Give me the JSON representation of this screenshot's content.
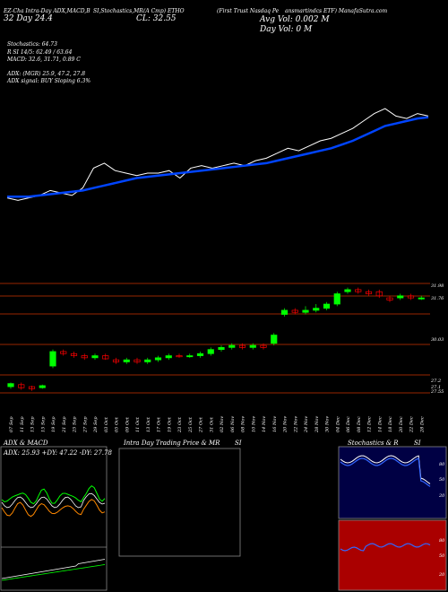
{
  "header": {
    "top_line_1": "EZ-Cha Intra-Day ADX,MACD,B",
    "top_line_2": "SI,Stochastics,MR",
    "top_line_3": "(A Cmp) ETHO",
    "top_line_4": "(First Trust Nasdaq Pe",
    "top_line_5": "ansmartindcs ETF) ManafaSutra.com",
    "ticker_tag": "CL: 32.55",
    "ticker_tag_2": "32 Day   24.4",
    "avg_vol": "Avg Vol: 0.002  M",
    "day_vol": "Day Vol: 0   M"
  },
  "indicators": {
    "stoch": "Stochastics: 64.73",
    "rsi": "R                         SI 14/5: 62.49 / 63.64",
    "macd": "MACD: 32.6,  31.71,  0.89 C",
    "adx": "ADX:                              (MGR) 25.9,  47.2,  27.8",
    "adx_signal": "ADX  signal:                              BUY Sloping 6.3%"
  },
  "price_labels": [
    "31.98",
    "31.76",
    "30.03",
    "27.2",
    "27.1",
    "27.55"
  ],
  "dates": [
    "07 Sep",
    "11 Sep",
    "13 Sep",
    "15 Sep",
    "19 Sep",
    "21 Sep",
    "25 Sep",
    "27 Sep",
    "29 Sep",
    "03 Oct",
    "05 Oct",
    "09 Oct",
    "11 Oct",
    "13 Oct",
    "17 Oct",
    "19 Oct",
    "23 Oct",
    "25 Oct",
    "27 Oct",
    "31 Oct",
    "02 Nov",
    "06 Nov",
    "08 Nov",
    "10 Nov",
    "14 Nov",
    "16 Nov",
    "20 Nov",
    "22 Nov",
    "24 Nov",
    "28 Nov",
    "30 Nov",
    "04 Dec",
    "06 Dec",
    "08 Dec",
    "12 Dec",
    "14 Dec",
    "18 Dec",
    "20 Dec",
    "22 Dec",
    "28 Dec"
  ],
  "panels": {
    "adx_title": "ADX  & MACD",
    "adx_readout": "ADX: 25.93  +DY: 47.22  -DY: 27.78",
    "mr_title": "Intra  Day Trading Price  & MR",
    "mr_si": "SI",
    "stoch_title": "Stochastics & R",
    "stoch_si": "SI",
    "stoch_ticks": [
      "80",
      "50",
      "20"
    ],
    "rsi_ticks": [
      "80",
      "50",
      "20"
    ]
  },
  "colors": {
    "up": "#00ff00",
    "down": "#ff0000",
    "ma": "#0044ff",
    "price": "#ffffff",
    "grid": "#cc3300"
  },
  "chart_data": {
    "type": "line",
    "title": "ETHO",
    "series": [
      {
        "name": "price",
        "values": [
          28.2,
          28.1,
          28.2,
          28.3,
          28.5,
          28.4,
          28.3,
          28.6,
          29.4,
          29.6,
          29.3,
          29.2,
          29.1,
          29.2,
          29.2,
          29.3,
          29.0,
          29.4,
          29.5,
          29.4,
          29.5,
          29.6,
          29.5,
          29.7,
          29.8,
          30.0,
          30.2,
          30.1,
          30.3,
          30.5,
          30.6,
          30.8,
          31.0,
          31.3,
          31.6,
          31.8,
          31.5,
          31.4,
          31.6,
          31.5
        ]
      },
      {
        "name": "ma",
        "values": [
          28.25,
          28.25,
          28.25,
          28.3,
          28.35,
          28.4,
          28.45,
          28.5,
          28.6,
          28.7,
          28.8,
          28.9,
          29.0,
          29.05,
          29.1,
          29.15,
          29.2,
          29.25,
          29.3,
          29.35,
          29.4,
          29.45,
          29.5,
          29.55,
          29.6,
          29.7,
          29.8,
          29.9,
          30.0,
          30.1,
          30.2,
          30.35,
          30.5,
          30.7,
          30.9,
          31.1,
          31.2,
          31.3,
          31.4,
          31.45
        ]
      }
    ],
    "candles": [
      [
        27.3,
        27.45,
        27.2,
        27.5
      ],
      [
        27.4,
        27.25,
        27.15,
        27.5
      ],
      [
        27.3,
        27.2,
        27.1,
        27.35
      ],
      [
        27.25,
        27.35,
        27.2,
        27.4
      ],
      [
        28.3,
        29.0,
        28.2,
        29.1
      ],
      [
        29.0,
        28.9,
        28.8,
        29.1
      ],
      [
        28.9,
        28.8,
        28.7,
        29.0
      ],
      [
        28.8,
        28.7,
        28.6,
        28.9
      ],
      [
        28.7,
        28.8,
        28.6,
        28.9
      ],
      [
        28.8,
        28.65,
        28.6,
        28.9
      ],
      [
        28.6,
        28.5,
        28.4,
        28.7
      ],
      [
        28.5,
        28.6,
        28.4,
        28.7
      ],
      [
        28.6,
        28.5,
        28.4,
        28.7
      ],
      [
        28.5,
        28.6,
        28.4,
        28.7
      ],
      [
        28.6,
        28.7,
        28.5,
        28.8
      ],
      [
        28.7,
        28.8,
        28.6,
        28.9
      ],
      [
        28.8,
        28.75,
        28.7,
        28.9
      ],
      [
        28.75,
        28.8,
        28.7,
        28.9
      ],
      [
        28.8,
        28.9,
        28.7,
        29.0
      ],
      [
        28.9,
        29.1,
        28.8,
        29.2
      ],
      [
        29.1,
        29.2,
        29.0,
        29.3
      ],
      [
        29.2,
        29.3,
        29.1,
        29.4
      ],
      [
        29.3,
        29.2,
        29.1,
        29.4
      ],
      [
        29.2,
        29.3,
        29.1,
        29.4
      ],
      [
        29.3,
        29.2,
        29.1,
        29.4
      ],
      [
        29.4,
        29.8,
        29.3,
        29.9
      ],
      [
        30.8,
        31.0,
        30.7,
        31.1
      ],
      [
        31.0,
        30.9,
        30.8,
        31.1
      ],
      [
        30.9,
        31.0,
        30.8,
        31.2
      ],
      [
        31.0,
        31.1,
        30.9,
        31.3
      ],
      [
        31.1,
        31.3,
        31.0,
        31.4
      ],
      [
        31.3,
        31.8,
        31.2,
        31.9
      ],
      [
        31.9,
        32.0,
        31.8,
        32.1
      ],
      [
        32.0,
        31.9,
        31.8,
        32.1
      ],
      [
        31.9,
        31.8,
        31.7,
        32.0
      ],
      [
        31.9,
        31.7,
        31.6,
        32.0
      ],
      [
        31.6,
        31.5,
        31.4,
        31.7
      ],
      [
        31.6,
        31.7,
        31.5,
        31.8
      ],
      [
        31.7,
        31.6,
        31.5,
        31.8
      ],
      [
        31.6,
        31.6,
        31.5,
        31.7
      ]
    ],
    "xlabel": "",
    "ylabel": "",
    "ylim": [
      27.0,
      32.3
    ]
  }
}
